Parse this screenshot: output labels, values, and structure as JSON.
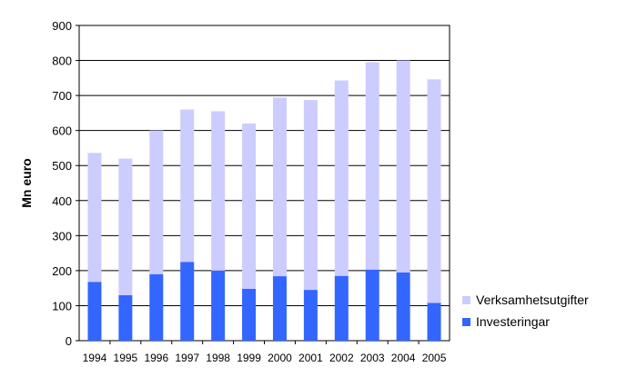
{
  "chart_data": {
    "type": "stacked-bar",
    "ylabel": "Mn euro",
    "ylim": [
      0,
      900
    ],
    "yticks": [
      "0",
      "100",
      "200",
      "300",
      "400",
      "500",
      "600",
      "700",
      "800",
      "900"
    ],
    "categories": [
      "1994",
      "1995",
      "1996",
      "1997",
      "1998",
      "1999",
      "2000",
      "2001",
      "2002",
      "2003",
      "2004",
      "2005"
    ],
    "series": [
      {
        "name": "Investeringar",
        "color": "#3366ff",
        "values": [
          168,
          130,
          190,
          225,
          200,
          148,
          184,
          145,
          185,
          203,
          195,
          108
        ]
      },
      {
        "name": "Verksamhetsutgifter",
        "color": "#ccccff",
        "values": [
          368,
          390,
          410,
          435,
          455,
          472,
          510,
          542,
          558,
          592,
          605,
          638
        ]
      }
    ],
    "legend_position": "right"
  }
}
